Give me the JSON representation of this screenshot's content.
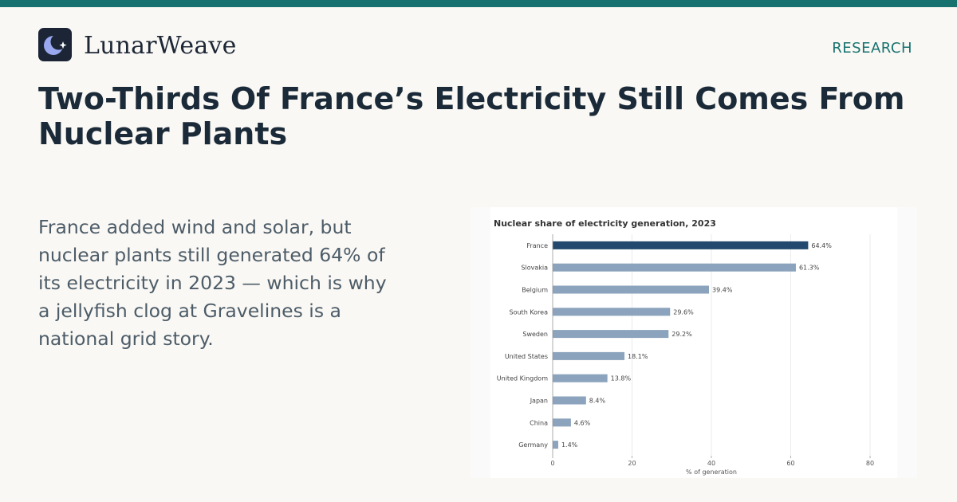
{
  "header": {
    "brand": "LunarWeave",
    "section": "RESEARCH",
    "logo_icon": "crescent-moon-sparkle-icon"
  },
  "article": {
    "headline": "Two-Thirds Of France’s Electricity Still Comes From Nuclear Plants",
    "summary": "France added wind and solar, but nuclear plants still generated 64% of its electricity in 2023 — which is why a jellyfish clog at Gravelines is a national grid story."
  },
  "colors": {
    "accent": "#17726f",
    "highlight_bar": "#234a6e",
    "default_bar": "#8ba3bc"
  },
  "chart_data": {
    "type": "bar",
    "orientation": "horizontal",
    "title": "Nuclear share of electricity generation, 2023",
    "xlabel": "% of generation",
    "ylabel": "",
    "categories": [
      "France",
      "Slovakia",
      "Belgium",
      "South Korea",
      "Sweden",
      "United States",
      "United Kingdom",
      "Japan",
      "China",
      "Germany"
    ],
    "values": [
      64.4,
      61.3,
      39.4,
      29.6,
      29.2,
      18.1,
      13.8,
      8.4,
      4.6,
      1.4
    ],
    "value_labels": [
      "64.4%",
      "61.3%",
      "39.4%",
      "29.6%",
      "29.2%",
      "18.1%",
      "13.8%",
      "8.4%",
      "4.6%",
      "1.4%"
    ],
    "highlight": "France",
    "xlim": [
      0,
      80
    ],
    "xticks": [
      0,
      20,
      40,
      60,
      80
    ],
    "grid": "vertical"
  }
}
